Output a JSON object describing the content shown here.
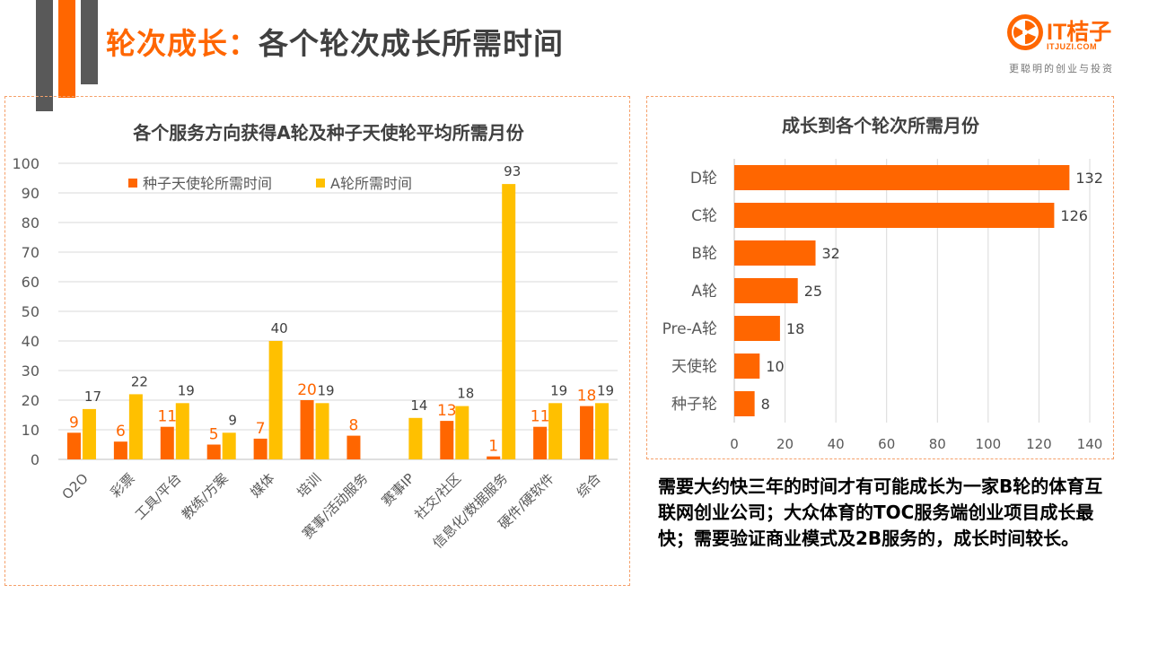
{
  "header": {
    "title_accent": "轮次成长",
    "title_sep": "：",
    "title_main": "各个轮次成长所需时间"
  },
  "logo": {
    "brand": "IT桔子",
    "domain": "ITJUZI.COM",
    "slogan": "更聪明的创业与投资",
    "icon": "orange-slice-icon"
  },
  "colors": {
    "accent": "#ff6600",
    "seed_series": "#ff6600",
    "a_series": "#ffc000",
    "dark": "#595959"
  },
  "chart_data": [
    {
      "type": "bar",
      "title": "各个服务方向获得A轮及种子天使轮平均所需月份",
      "categories": [
        "O2O",
        "彩票",
        "工具/平台",
        "教练/方案",
        "媒体",
        "培训",
        "赛事/活动服务",
        "赛事IP",
        "社交/社区",
        "信息化/数据服务",
        "硬件/硬软件",
        "综合"
      ],
      "series": [
        {
          "name": "种子天使轮所需时间",
          "values": [
            9,
            6,
            11,
            5,
            7,
            20,
            8,
            null,
            13,
            1,
            11,
            18
          ]
        },
        {
          "name": "A轮所需时间",
          "values": [
            17,
            22,
            19,
            9,
            40,
            19,
            null,
            14,
            18,
            93,
            19,
            19
          ]
        }
      ],
      "ylim": [
        0,
        100
      ],
      "yticks": [
        "0",
        "10",
        "20",
        "30",
        "40",
        "50",
        "60",
        "70",
        "80",
        "90",
        "100"
      ],
      "grid": true,
      "legend": "top-left"
    },
    {
      "type": "bar",
      "orientation": "horizontal",
      "title": "成长到各个轮次所需月份",
      "categories": [
        "D轮",
        "C轮",
        "B轮",
        "A轮",
        "Pre-A轮",
        "天使轮",
        "种子轮"
      ],
      "values": [
        132,
        126,
        32,
        25,
        18,
        10,
        8
      ],
      "xlim": [
        0,
        140
      ],
      "xticks": [
        "0",
        "20",
        "40",
        "60",
        "80",
        "100",
        "120",
        "140"
      ],
      "grid": true
    }
  ],
  "summary": "需要大约快三年的时间才有可能成长为一家B轮的体育互联网创业公司；大众体育的TOC服务端创业项目成长最快；需要验证商业模式及2B服务的，成长时间较长。"
}
